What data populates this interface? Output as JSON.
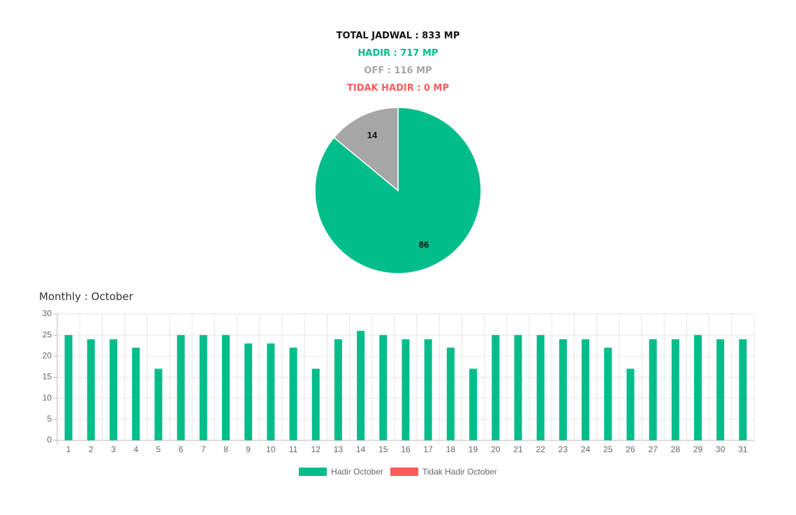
{
  "summary": {
    "total": "TOTAL JADWAL : 833 MP",
    "hadir": "HADIR : 717 MP",
    "off": "OFF : 116 MP",
    "tidak_hadir": "TIDAK HADIR : 0 MP"
  },
  "colors": {
    "hadir": "#00bd8a",
    "off": "#a6a6a6",
    "tidak_hadir": "#ff5b5b",
    "total": "#111111"
  },
  "monthly_title": "Monthly : October",
  "chart_data": [
    {
      "type": "pie",
      "slices": [
        {
          "label": "HADIR",
          "value": 86,
          "color": "#00bd8a"
        },
        {
          "label": "OFF",
          "value": 14,
          "color": "#a6a6a6"
        }
      ]
    },
    {
      "type": "bar",
      "categories": [
        "1",
        "2",
        "3",
        "4",
        "5",
        "6",
        "7",
        "8",
        "9",
        "10",
        "11",
        "12",
        "13",
        "14",
        "15",
        "16",
        "17",
        "18",
        "19",
        "20",
        "21",
        "22",
        "23",
        "24",
        "25",
        "26",
        "27",
        "28",
        "29",
        "30",
        "31"
      ],
      "series": [
        {
          "name": "Hadir October",
          "color": "#00bd8a",
          "values": [
            25,
            24,
            24,
            22,
            17,
            25,
            25,
            25,
            23,
            23,
            22,
            17,
            24,
            26,
            25,
            24,
            24,
            22,
            17,
            25,
            25,
            25,
            24,
            24,
            22,
            17,
            24,
            24,
            25,
            24,
            24
          ]
        },
        {
          "name": "Tidak Hadir October",
          "color": "#ff5b5b",
          "values": [
            0,
            0,
            0,
            0,
            0,
            0,
            0,
            0,
            0,
            0,
            0,
            0,
            0,
            0,
            0,
            0,
            0,
            0,
            0,
            0,
            0,
            0,
            0,
            0,
            0,
            0,
            0,
            0,
            0,
            0,
            0
          ]
        }
      ],
      "ylim": [
        0,
        30
      ],
      "yticks": [
        0,
        5,
        10,
        15,
        20,
        25,
        30
      ],
      "grid": true,
      "legend_position": "bottom"
    }
  ]
}
